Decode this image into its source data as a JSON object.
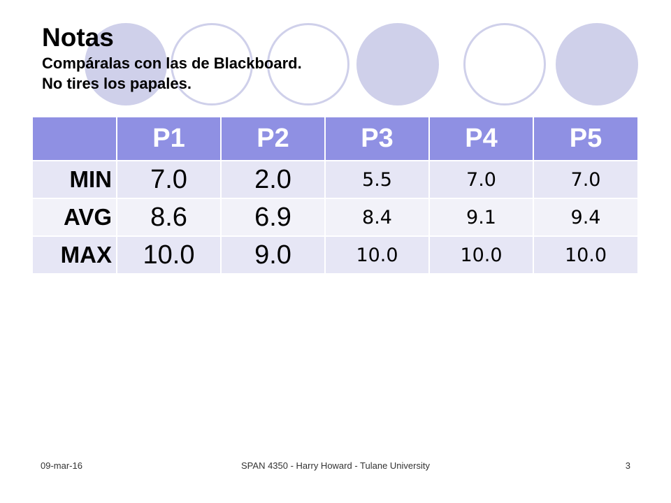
{
  "title": "Notas",
  "subtitle_lines": [
    "Compáralas con las de Blackboard.",
    "No tires los papales."
  ],
  "table": {
    "headers": [
      "P1",
      "P2",
      "P3",
      "P4",
      "P5"
    ],
    "rows": [
      {
        "label": "MIN",
        "values": [
          "7.0",
          "2.0",
          "5.5",
          "7.0",
          "7.0"
        ]
      },
      {
        "label": "AVG",
        "values": [
          "8.6",
          "6.9",
          "8.4",
          "9.1",
          "9.4"
        ]
      },
      {
        "label": "MAX",
        "values": [
          "10.0",
          "9.0",
          "10.0",
          "10.0",
          "10.0"
        ]
      }
    ]
  },
  "footer": {
    "date": "09-mar-16",
    "course": "SPAN 4350 - Harry Howard - Tulane University",
    "page_number": "3"
  },
  "colors": {
    "header_fill": "#8f90e3",
    "row_band_a": "#e6e6f5",
    "row_band_b": "#f2f2f9",
    "decor_circle": "#cfd0ea"
  }
}
